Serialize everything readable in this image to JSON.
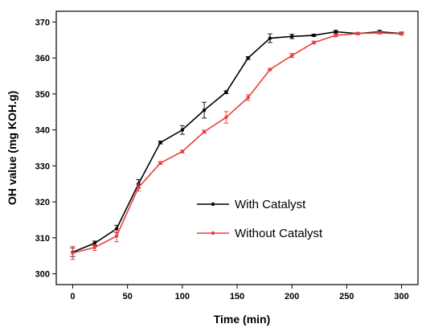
{
  "chart_data": {
    "type": "line",
    "title": "",
    "xlabel": "Time (min)",
    "ylabel": "OH value (mg KOH.g)",
    "xlim": [
      -15,
      315
    ],
    "ylim": [
      297,
      373
    ],
    "xticks": [
      0,
      50,
      100,
      150,
      200,
      250,
      300
    ],
    "yticks": [
      300,
      310,
      320,
      330,
      340,
      350,
      360,
      370
    ],
    "grid": false,
    "legend_position": "center-right",
    "series": [
      {
        "name": "With Catalyst",
        "color": "#000000",
        "x": [
          0,
          20,
          40,
          60,
          80,
          100,
          120,
          140,
          160,
          180,
          200,
          220,
          240,
          260,
          280,
          300
        ],
        "y": [
          306,
          308.5,
          312.5,
          325,
          336.5,
          340,
          345.5,
          350.5,
          360,
          365.5,
          366,
          366.3,
          367.3,
          366.8,
          367.3,
          366.8
        ],
        "err": [
          1.2,
          0.6,
          1.0,
          1.2,
          0.4,
          1.2,
          2.2,
          0.4,
          0.4,
          1.2,
          0.6,
          0.3,
          0.4,
          0.3,
          0.4,
          0.4
        ]
      },
      {
        "name": "Without Catalyst",
        "color": "#e8403f",
        "x": [
          0,
          20,
          40,
          60,
          80,
          100,
          120,
          140,
          160,
          180,
          200,
          220,
          240,
          260,
          280,
          300
        ],
        "y": [
          305.8,
          307.3,
          310.5,
          324,
          330.8,
          334,
          339.5,
          343.5,
          349,
          356.8,
          360.7,
          364.3,
          366.3,
          366.8,
          367,
          366.7
        ],
        "err": [
          1.8,
          0.8,
          1.6,
          1.0,
          0.4,
          0.4,
          0.4,
          1.6,
          0.8,
          0.3,
          0.6,
          0.4,
          0.4,
          0.3,
          0.3,
          0.3
        ]
      }
    ]
  }
}
